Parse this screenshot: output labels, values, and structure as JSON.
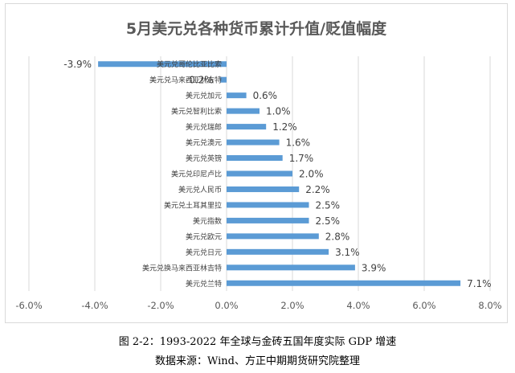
{
  "captions": {
    "figure": "图 2-2：1993-2022 年全球与金砖五国年度实际 GDP 增速",
    "source": "数据来源：Wind、方正中期期货研究院整理"
  },
  "chart_data": {
    "type": "bar",
    "orientation": "horizontal",
    "title": "5月美元兑各种货币累计升值/贬值幅度",
    "xlabel": "",
    "ylabel": "",
    "xlim": [
      -6.0,
      8.0
    ],
    "x_ticks": [
      "-6.0%",
      "-4.0%",
      "-2.0%",
      "0.0%",
      "2.0%",
      "4.0%",
      "6.0%",
      "8.0%"
    ],
    "grid": "vertical",
    "bar_color": "#5b9bd5",
    "categories": [
      "美元兑哥伦比亚比索",
      "美元兑马来西亚林吉特",
      "美元兑加元",
      "美元兑智利比索",
      "美元兑瑞郎",
      "美元兑澳元",
      "美元兑英镑",
      "美元兑印尼卢比",
      "美元兑人民币",
      "美元兑土耳其里拉",
      "美元指数",
      "美元兑欧元",
      "美元兑日元",
      "美元兑换马来西亚林吉特",
      "美元兑兰特"
    ],
    "values": [
      -3.9,
      -0.2,
      0.6,
      1.0,
      1.2,
      1.6,
      1.7,
      2.0,
      2.2,
      2.5,
      2.5,
      2.8,
      3.1,
      3.9,
      7.1
    ],
    "value_labels": [
      "-3.9%",
      "-0.2%",
      "0.6%",
      "1.0%",
      "1.2%",
      "1.6%",
      "1.7%",
      "2.0%",
      "2.2%",
      "2.5%",
      "2.5%",
      "2.8%",
      "3.1%",
      "3.9%",
      "7.1%"
    ]
  }
}
